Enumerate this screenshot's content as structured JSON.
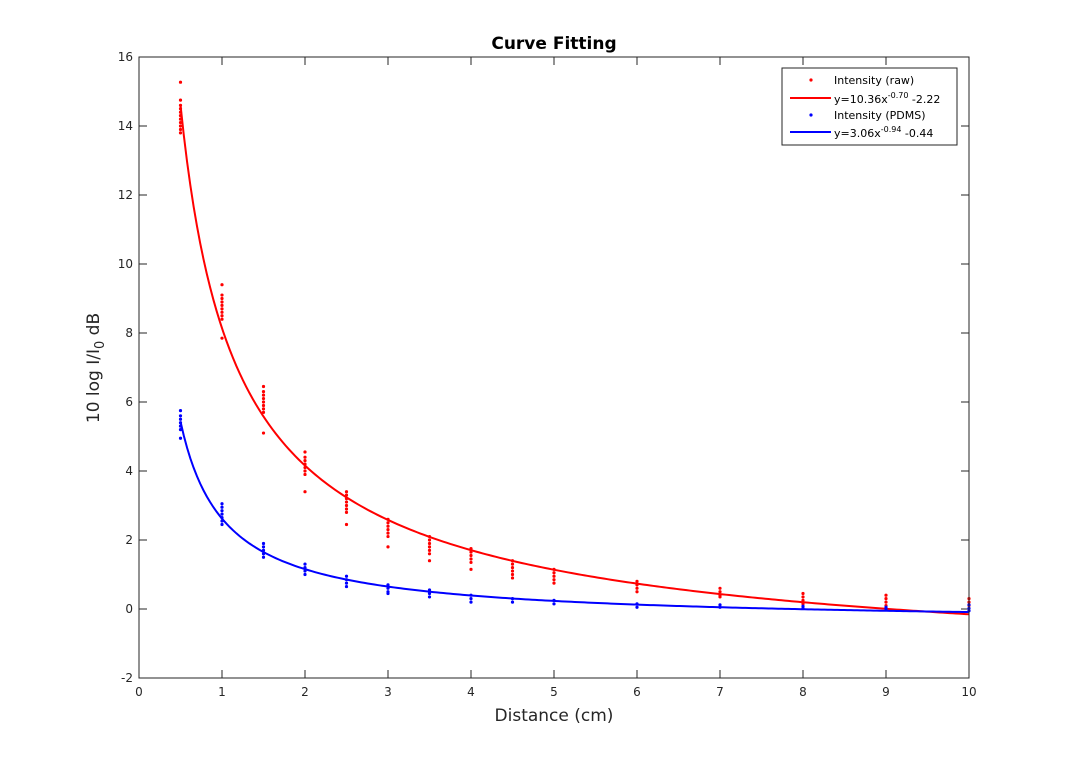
{
  "chart_data": {
    "type": "scatter",
    "title": "Curve Fitting",
    "xlabel": "Distance (cm)",
    "ylabel": {
      "main": "10 log I/I",
      "sub": "0",
      "tail": " dB"
    },
    "xlim": [
      0,
      10
    ],
    "ylim": [
      -2,
      16
    ],
    "xticks": [
      "0",
      "1",
      "2",
      "3",
      "4",
      "5",
      "6",
      "7",
      "8",
      "9",
      "10"
    ],
    "yticks": [
      "-2",
      "0",
      "2",
      "4",
      "6",
      "8",
      "10",
      "12",
      "14",
      "16"
    ],
    "grid": false,
    "legend_position": "top-right",
    "legend": [
      {
        "type": "marker",
        "color": "#ff0000",
        "text": "Intensity (raw)"
      },
      {
        "type": "line",
        "color": "#ff0000",
        "text": "y=10.36x",
        "sup": "-0.70",
        "tail": " -2.22"
      },
      {
        "type": "marker",
        "color": "#0000ff",
        "text": "Intensity (PDMS)"
      },
      {
        "type": "line",
        "color": "#0000ff",
        "text": "y=3.06x",
        "sup": "-0.94",
        "tail": " -0.44"
      }
    ],
    "series": [
      {
        "name": "Intensity (raw)",
        "kind": "scatter",
        "color": "#ff0000",
        "points": [
          [
            0.5,
            15.27
          ],
          [
            0.5,
            14.75
          ],
          [
            0.5,
            14.6
          ],
          [
            0.5,
            14.5
          ],
          [
            0.5,
            14.4
          ],
          [
            0.5,
            14.3
          ],
          [
            0.5,
            14.2
          ],
          [
            0.5,
            14.1
          ],
          [
            0.5,
            14.0
          ],
          [
            0.5,
            13.9
          ],
          [
            0.5,
            13.8
          ],
          [
            1,
            9.4
          ],
          [
            1,
            9.1
          ],
          [
            1,
            9.0
          ],
          [
            1,
            8.9
          ],
          [
            1,
            8.8
          ],
          [
            1,
            8.7
          ],
          [
            1,
            8.6
          ],
          [
            1,
            8.5
          ],
          [
            1,
            8.4
          ],
          [
            1,
            7.85
          ],
          [
            1.5,
            6.45
          ],
          [
            1.5,
            6.3
          ],
          [
            1.5,
            6.2
          ],
          [
            1.5,
            6.1
          ],
          [
            1.5,
            6.0
          ],
          [
            1.5,
            5.9
          ],
          [
            1.5,
            5.8
          ],
          [
            1.5,
            5.7
          ],
          [
            1.5,
            5.1
          ],
          [
            2,
            4.55
          ],
          [
            2,
            4.4
          ],
          [
            2,
            4.3
          ],
          [
            2,
            4.2
          ],
          [
            2,
            4.1
          ],
          [
            2,
            4.0
          ],
          [
            2,
            3.9
          ],
          [
            2,
            3.4
          ],
          [
            2.5,
            3.4
          ],
          [
            2.5,
            3.3
          ],
          [
            2.5,
            3.2
          ],
          [
            2.5,
            3.1
          ],
          [
            2.5,
            3.0
          ],
          [
            2.5,
            2.9
          ],
          [
            2.5,
            2.8
          ],
          [
            2.5,
            2.45
          ],
          [
            3,
            2.6
          ],
          [
            3,
            2.5
          ],
          [
            3,
            2.4
          ],
          [
            3,
            2.3
          ],
          [
            3,
            2.2
          ],
          [
            3,
            2.1
          ],
          [
            3,
            1.8
          ],
          [
            3.5,
            2.1
          ],
          [
            3.5,
            2.0
          ],
          [
            3.5,
            1.9
          ],
          [
            3.5,
            1.8
          ],
          [
            3.5,
            1.7
          ],
          [
            3.5,
            1.6
          ],
          [
            3.5,
            1.4
          ],
          [
            4,
            1.75
          ],
          [
            4,
            1.65
          ],
          [
            4,
            1.55
          ],
          [
            4,
            1.45
          ],
          [
            4,
            1.35
          ],
          [
            4,
            1.15
          ],
          [
            4.5,
            1.4
          ],
          [
            4.5,
            1.3
          ],
          [
            4.5,
            1.2
          ],
          [
            4.5,
            1.1
          ],
          [
            4.5,
            1.0
          ],
          [
            4.5,
            0.9
          ],
          [
            5,
            1.15
          ],
          [
            5,
            1.05
          ],
          [
            5,
            0.95
          ],
          [
            5,
            0.85
          ],
          [
            5,
            0.75
          ],
          [
            6,
            0.8
          ],
          [
            6,
            0.7
          ],
          [
            6,
            0.6
          ],
          [
            6,
            0.5
          ],
          [
            7,
            0.6
          ],
          [
            7,
            0.5
          ],
          [
            7,
            0.4
          ],
          [
            7,
            0.35
          ],
          [
            8,
            0.45
          ],
          [
            8,
            0.35
          ],
          [
            8,
            0.25
          ],
          [
            8,
            0.15
          ],
          [
            9,
            0.4
          ],
          [
            9,
            0.3
          ],
          [
            9,
            0.2
          ],
          [
            9,
            0.1
          ],
          [
            10,
            0.3
          ],
          [
            10,
            0.2
          ],
          [
            10,
            0.1
          ]
        ]
      },
      {
        "name": "y=10.36x^-0.70 -2.22",
        "kind": "fit",
        "color": "#ff0000",
        "a": 10.36,
        "b": -0.7,
        "c": -2.22,
        "x_range": [
          0.5,
          10
        ]
      },
      {
        "name": "Intensity (PDMS)",
        "kind": "scatter",
        "color": "#0000ff",
        "points": [
          [
            0.5,
            5.75
          ],
          [
            0.5,
            5.6
          ],
          [
            0.5,
            5.5
          ],
          [
            0.5,
            5.4
          ],
          [
            0.5,
            5.3
          ],
          [
            0.5,
            5.2
          ],
          [
            0.5,
            4.95
          ],
          [
            1,
            3.05
          ],
          [
            1,
            2.95
          ],
          [
            1,
            2.85
          ],
          [
            1,
            2.75
          ],
          [
            1,
            2.65
          ],
          [
            1,
            2.55
          ],
          [
            1,
            2.45
          ],
          [
            1.5,
            1.9
          ],
          [
            1.5,
            1.8
          ],
          [
            1.5,
            1.7
          ],
          [
            1.5,
            1.6
          ],
          [
            1.5,
            1.5
          ],
          [
            2,
            1.3
          ],
          [
            2,
            1.2
          ],
          [
            2,
            1.1
          ],
          [
            2,
            1.0
          ],
          [
            2.5,
            0.95
          ],
          [
            2.5,
            0.85
          ],
          [
            2.5,
            0.75
          ],
          [
            2.5,
            0.65
          ],
          [
            3,
            0.7
          ],
          [
            3,
            0.6
          ],
          [
            3,
            0.5
          ],
          [
            3,
            0.45
          ],
          [
            3.5,
            0.55
          ],
          [
            3.5,
            0.45
          ],
          [
            3.5,
            0.35
          ],
          [
            4,
            0.4
          ],
          [
            4,
            0.3
          ],
          [
            4,
            0.2
          ],
          [
            4.5,
            0.3
          ],
          [
            4.5,
            0.2
          ],
          [
            5,
            0.25
          ],
          [
            5,
            0.15
          ],
          [
            6,
            0.15
          ],
          [
            6,
            0.05
          ],
          [
            7,
            0.12
          ],
          [
            7,
            0.05
          ],
          [
            8,
            0.08
          ],
          [
            8,
            0.02
          ],
          [
            9,
            0.05
          ],
          [
            9,
            0.0
          ],
          [
            10,
            0.12
          ],
          [
            10,
            0.02
          ],
          [
            10,
            -0.05
          ]
        ]
      },
      {
        "name": "y=3.06x^-0.94 -0.44",
        "kind": "fit",
        "color": "#0000ff",
        "a": 3.06,
        "b": -0.94,
        "c": -0.44,
        "x_range": [
          0.5,
          10
        ]
      }
    ]
  }
}
